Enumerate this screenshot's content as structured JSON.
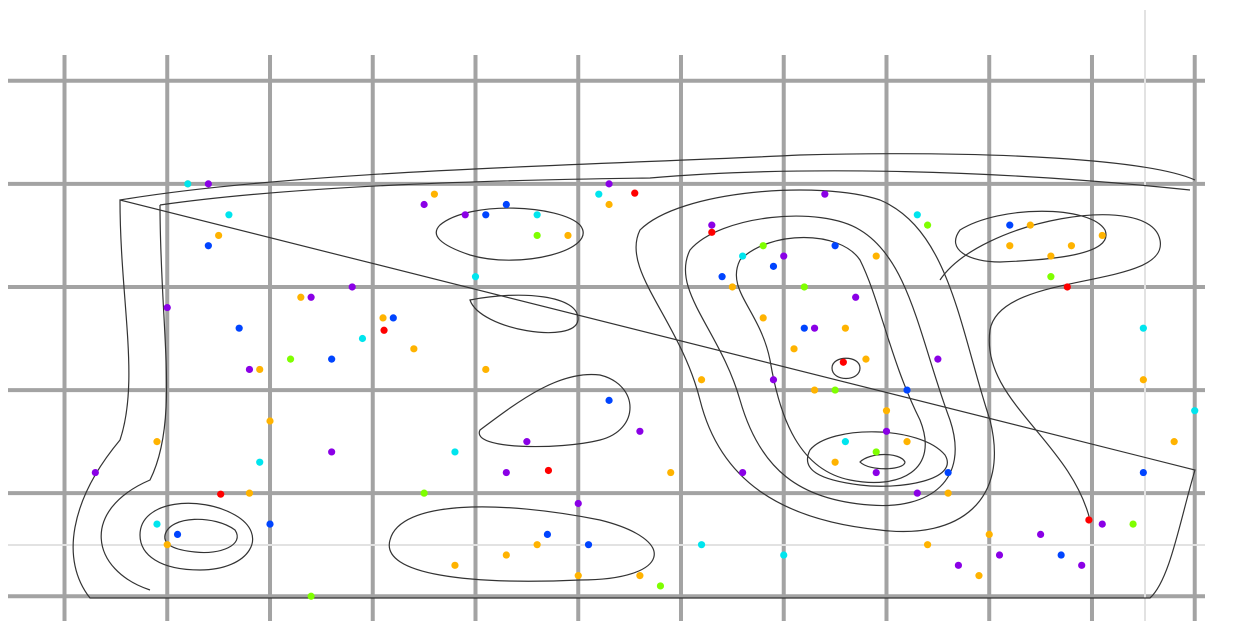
{
  "chart_data": {
    "type": "scatter",
    "xlim": [
      -0.55,
      11.1
    ],
    "ylim": [
      -0.24,
      5.25
    ],
    "xticks": [
      0,
      1,
      2,
      3,
      4,
      5,
      6,
      7,
      8,
      9,
      10,
      11
    ],
    "yticks": [
      0,
      1,
      2,
      3,
      4,
      5
    ],
    "grid": true,
    "series": [
      {
        "color": "#ffb300",
        "x": [
          1.2,
          1.5,
          1.9,
          0.9,
          1.8,
          2.3,
          3.1,
          3.4,
          4.1,
          4.3,
          4.6,
          3.8,
          5.0,
          5.6,
          5.9,
          6.5,
          6.8,
          7.1,
          7.3,
          7.6,
          7.8,
          8.0,
          8.2,
          7.5,
          7.9,
          8.4,
          8.9,
          9.2,
          9.4,
          9.6,
          9.8,
          10.1,
          10.5,
          10.8,
          9.0,
          8.6,
          6.2,
          5.3,
          3.6,
          2.0,
          1.0,
          4.9
        ],
        "y": [
          4.0,
          3.5,
          2.2,
          1.5,
          1.0,
          2.9,
          2.7,
          2.4,
          2.2,
          0.4,
          0.5,
          0.3,
          0.2,
          0.2,
          1.2,
          3.0,
          2.7,
          2.4,
          2.0,
          2.6,
          2.3,
          1.8,
          1.5,
          1.3,
          3.3,
          0.5,
          0.2,
          3.4,
          3.6,
          3.3,
          3.4,
          3.5,
          2.1,
          1.5,
          0.6,
          1.0,
          2.1,
          3.8,
          3.9,
          1.7,
          0.5,
          3.5
        ]
      },
      {
        "color": "#8a00e6",
        "x": [
          1.0,
          1.4,
          2.4,
          2.8,
          3.5,
          3.9,
          4.5,
          5.0,
          5.6,
          6.3,
          6.6,
          7.0,
          7.3,
          7.7,
          8.0,
          8.3,
          8.7,
          9.1,
          9.5,
          10.1,
          0.3,
          1.8,
          2.6,
          4.3,
          5.3,
          7.4,
          7.9,
          8.5,
          9.9,
          6.9
        ],
        "y": [
          2.8,
          4.0,
          2.9,
          3.0,
          3.8,
          3.7,
          1.5,
          0.9,
          1.6,
          3.6,
          1.2,
          3.3,
          2.6,
          2.9,
          1.6,
          1.0,
          0.3,
          0.4,
          0.6,
          0.7,
          1.2,
          2.2,
          1.4,
          1.2,
          4.0,
          3.9,
          1.2,
          2.3,
          0.3,
          2.1
        ]
      },
      {
        "color": "#0044ff",
        "x": [
          1.4,
          1.7,
          2.0,
          2.6,
          3.2,
          4.1,
          4.7,
          5.1,
          5.3,
          6.4,
          6.9,
          7.2,
          7.5,
          8.2,
          8.6,
          9.2,
          9.7,
          10.5,
          1.1,
          4.3
        ],
        "y": [
          3.4,
          2.6,
          0.7,
          2.3,
          2.7,
          3.7,
          0.6,
          0.5,
          1.9,
          3.1,
          3.2,
          2.6,
          3.4,
          2.0,
          1.2,
          3.6,
          0.4,
          1.2,
          0.6,
          3.8
        ]
      },
      {
        "color": "#00e5ee",
        "x": [
          1.2,
          1.6,
          1.9,
          2.9,
          3.8,
          4.0,
          4.6,
          5.2,
          6.2,
          6.6,
          7.0,
          7.6,
          8.3,
          10.5,
          11.0,
          0.9
        ],
        "y": [
          4.0,
          3.7,
          1.3,
          2.5,
          1.4,
          3.1,
          3.7,
          3.9,
          0.5,
          3.3,
          0.4,
          1.5,
          3.7,
          2.6,
          1.8,
          0.7
        ]
      },
      {
        "color": "#7fff00",
        "x": [
          2.2,
          3.5,
          4.6,
          5.8,
          6.8,
          7.2,
          7.5,
          7.9,
          8.4,
          9.6,
          10.4,
          2.4
        ],
        "y": [
          2.3,
          1.0,
          3.5,
          0.1,
          3.4,
          3.0,
          2.0,
          1.4,
          3.6,
          3.1,
          0.7,
          0.0
        ]
      },
      {
        "color": "#ff0000",
        "x": [
          5.55,
          3.11,
          4.71,
          1.52,
          9.76,
          9.97,
          7.58,
          6.3
        ],
        "y": [
          3.91,
          2.58,
          1.22,
          0.99,
          3.0,
          0.74,
          2.27,
          3.53
        ]
      }
    ]
  }
}
